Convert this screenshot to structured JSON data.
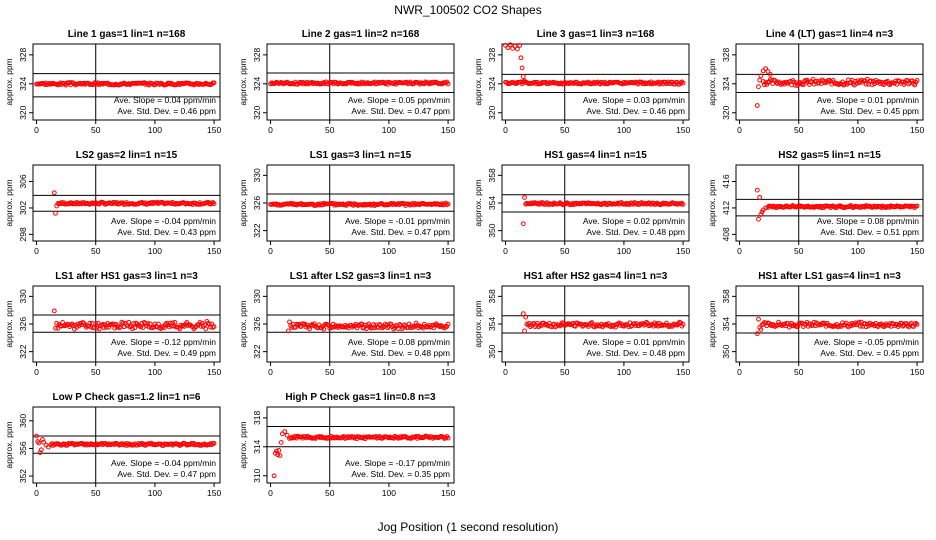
{
  "figure_title": "NWR_100502  CO2 Shapes",
  "x_axis_label": "Jog Position (1 second resolution)",
  "colors": {
    "points": "#ff0000",
    "axes": "#000000"
  },
  "chart_data": [
    {
      "type": "scatter",
      "title": "Line 1 gas=1 lin=1 n=168",
      "ylabel": "approx. ppm",
      "xlim": [
        -3,
        155
      ],
      "ylim": [
        319,
        329.5
      ],
      "xticks": [
        0,
        50,
        100,
        150
      ],
      "yticks": [
        320,
        324,
        328
      ],
      "hlines": [
        322.2,
        325.4
      ],
      "vline": 50,
      "slope_text": "Ave. Slope =  0.04  ppm/min",
      "std_text": "Ave. Std. Dev. =  0.46  ppm",
      "pattern": "flat",
      "x_start": 0,
      "x_end": 150,
      "base": 324.0,
      "noise": 0.15
    },
    {
      "type": "scatter",
      "title": "Line 2 gas=1 lin=2 n=168",
      "ylabel": "approx. ppm",
      "xlim": [
        -3,
        155
      ],
      "ylim": [
        319,
        329.5
      ],
      "xticks": [
        0,
        50,
        100,
        150
      ],
      "yticks": [
        320,
        324,
        328
      ],
      "hlines": [
        322.8,
        325.5
      ],
      "vline": 50,
      "slope_text": "Ave. Slope =  0.05  ppm/min",
      "std_text": "Ave. Std. Dev. =  0.47  ppm",
      "pattern": "flat",
      "x_start": 0,
      "x_end": 150,
      "base": 324.1,
      "noise": 0.15
    },
    {
      "type": "scatter",
      "title": "Line 3 gas=1 lin=3 n=168",
      "ylabel": "approx. ppm",
      "xlim": [
        -3,
        155
      ],
      "ylim": [
        319,
        329.5
      ],
      "xticks": [
        0,
        50,
        100,
        150
      ],
      "yticks": [
        320,
        324,
        328
      ],
      "hlines": [
        322.8,
        325.3
      ],
      "vline": 50,
      "slope_text": "Ave. Slope =  0.03  ppm/min",
      "std_text": "Ave. Std. Dev. =  0.46  ppm",
      "pattern": "drop",
      "x_start": 0,
      "x_end": 150,
      "base": 324.1,
      "noise": 0.15,
      "lead": [
        [
          0,
          329.3
        ],
        [
          2,
          329.0
        ],
        [
          4,
          329.4
        ],
        [
          6,
          328.9
        ],
        [
          8,
          329.2
        ],
        [
          10,
          328.8
        ],
        [
          12,
          329.3
        ],
        [
          13,
          327.6
        ],
        [
          14,
          326.2
        ],
        [
          15,
          325.0
        ],
        [
          16,
          324.4
        ]
      ]
    },
    {
      "type": "scatter",
      "title": "Line 4 (LT) gas=1 lin=4 n=3",
      "ylabel": "approx. ppm",
      "xlim": [
        -3,
        155
      ],
      "ylim": [
        319,
        329.5
      ],
      "xticks": [
        0,
        50,
        100,
        150
      ],
      "yticks": [
        320,
        324,
        328
      ],
      "hlines": [
        322.8,
        325.3
      ],
      "vline": 50,
      "slope_text": "Ave. Slope =  0.01  ppm/min",
      "std_text": "Ave. Std. Dev. =  0.45  ppm",
      "pattern": "bump",
      "x_start": 20,
      "x_end": 150,
      "base": 324.2,
      "noise": 0.35,
      "lead": [
        [
          15,
          321.0
        ],
        [
          16,
          323.6
        ],
        [
          17,
          324.5
        ],
        [
          18,
          325.1
        ],
        [
          20,
          325.8
        ],
        [
          22,
          326.1
        ],
        [
          24,
          325.7
        ],
        [
          26,
          325.3
        ]
      ]
    },
    {
      "type": "scatter",
      "title": "LS2 gas=2 lin=1 n=15",
      "ylabel": "approx. ppm",
      "xlim": [
        -3,
        155
      ],
      "ylim": [
        297,
        308.5
      ],
      "xticks": [
        0,
        50,
        100,
        150
      ],
      "yticks": [
        298,
        302,
        306
      ],
      "hlines": [
        301.5,
        303.9
      ],
      "vline": 50,
      "slope_text": "Ave. Slope =  -0.04  ppm/min",
      "std_text": "Ave. Std. Dev. =  0.43  ppm",
      "pattern": "spike",
      "x_start": 18,
      "x_end": 150,
      "base": 302.7,
      "noise": 0.15,
      "lead": [
        [
          15,
          304.3
        ],
        [
          16,
          301.2
        ],
        [
          17,
          302.3
        ]
      ]
    },
    {
      "type": "scatter",
      "title": "LS1 gas=3 lin=1 n=15",
      "ylabel": "approx. ppm",
      "xlim": [
        -3,
        155
      ],
      "ylim": [
        320.5,
        331.5
      ],
      "xticks": [
        0,
        50,
        100,
        150
      ],
      "yticks": [
        322,
        326,
        330
      ],
      "hlines": [
        324.8,
        327.3
      ],
      "vline": 50,
      "slope_text": "Ave. Slope =  -0.01  ppm/min",
      "std_text": "Ave. Std. Dev. =  0.47  ppm",
      "pattern": "flat",
      "x_start": 0,
      "x_end": 150,
      "base": 325.8,
      "noise": 0.15
    },
    {
      "type": "scatter",
      "title": "HS1 gas=4 lin=1 n=15",
      "ylabel": "approx. ppm",
      "xlim": [
        -3,
        155
      ],
      "ylim": [
        348.5,
        359.5
      ],
      "xticks": [
        0,
        50,
        100,
        150
      ],
      "yticks": [
        350,
        354,
        358
      ],
      "hlines": [
        352.7,
        355.2
      ],
      "vline": 50,
      "slope_text": "Ave. Slope =  0.02  ppm/min",
      "std_text": "Ave. Std. Dev. =  0.48  ppm",
      "pattern": "spike",
      "x_start": 17,
      "x_end": 150,
      "base": 353.9,
      "noise": 0.15,
      "lead": [
        [
          15,
          351.0
        ],
        [
          16,
          354.8
        ]
      ]
    },
    {
      "type": "scatter",
      "title": "HS2 gas=5 lin=1 n=15",
      "ylabel": "approx. ppm",
      "xlim": [
        -3,
        155
      ],
      "ylim": [
        407,
        418.5
      ],
      "xticks": [
        0,
        50,
        100,
        150
      ],
      "yticks": [
        408,
        412,
        416
      ],
      "hlines": [
        410.8,
        413.3
      ],
      "vline": 50,
      "slope_text": "Ave. Slope =  0.08  ppm/min",
      "std_text": "Ave. Std. Dev. =  0.51  ppm",
      "pattern": "recover",
      "x_start": 24,
      "x_end": 150,
      "base": 412.2,
      "noise": 0.15,
      "lead": [
        [
          15,
          414.7
        ],
        [
          16,
          410.3
        ],
        [
          17,
          413.6
        ],
        [
          18,
          411.0
        ],
        [
          19,
          411.4
        ],
        [
          20,
          411.7
        ],
        [
          22,
          412.0
        ]
      ]
    },
    {
      "type": "scatter",
      "title": "LS1 after HS1 gas=3 lin=1 n=3",
      "ylabel": "approx. ppm",
      "xlim": [
        -3,
        155
      ],
      "ylim": [
        320.5,
        331.5
      ],
      "xticks": [
        0,
        50,
        100,
        150
      ],
      "yticks": [
        322,
        326,
        330
      ],
      "hlines": [
        324.8,
        327.3
      ],
      "vline": 50,
      "slope_text": "Ave. Slope =  -0.12  ppm/min",
      "std_text": "Ave. Std. Dev. =  0.49  ppm",
      "pattern": "noisy",
      "x_start": 17,
      "x_end": 150,
      "base": 325.8,
      "noise": 0.45,
      "lead": [
        [
          15,
          327.9
        ],
        [
          16,
          325.4
        ]
      ]
    },
    {
      "type": "scatter",
      "title": "LS1 after LS2 gas=3 lin=1 n=3",
      "ylabel": "approx. ppm",
      "xlim": [
        -3,
        155
      ],
      "ylim": [
        320.5,
        331.5
      ],
      "xticks": [
        0,
        50,
        100,
        150
      ],
      "yticks": [
        322,
        326,
        330
      ],
      "hlines": [
        324.8,
        327.3
      ],
      "vline": 50,
      "slope_text": "Ave. Slope =  0.08  ppm/min",
      "std_text": "Ave. Std. Dev. =  0.48  ppm",
      "pattern": "noisy",
      "x_start": 17,
      "x_end": 150,
      "base": 325.7,
      "noise": 0.35,
      "lead": [
        [
          15,
          325.0
        ],
        [
          16,
          326.3
        ]
      ]
    },
    {
      "type": "scatter",
      "title": "HS1 after HS2 gas=4 lin=1 n=3",
      "ylabel": "approx. ppm",
      "xlim": [
        -3,
        155
      ],
      "ylim": [
        348.5,
        359.5
      ],
      "xticks": [
        0,
        50,
        100,
        150
      ],
      "yticks": [
        350,
        354,
        358
      ],
      "hlines": [
        352.7,
        355.2
      ],
      "vline": 50,
      "slope_text": "Ave. Slope =  0.01  ppm/min",
      "std_text": "Ave. Std. Dev. =  0.48  ppm",
      "pattern": "noisy",
      "x_start": 18,
      "x_end": 150,
      "base": 353.9,
      "noise": 0.3,
      "lead": [
        [
          15,
          355.5
        ],
        [
          16,
          353.0
        ],
        [
          17,
          355.0
        ]
      ]
    },
    {
      "type": "scatter",
      "title": "HS1 after LS1 gas=4 lin=1 n=3",
      "ylabel": "approx. ppm",
      "xlim": [
        -3,
        155
      ],
      "ylim": [
        348.5,
        359.5
      ],
      "xticks": [
        0,
        50,
        100,
        150
      ],
      "yticks": [
        350,
        354,
        358
      ],
      "hlines": [
        352.7,
        355.2
      ],
      "vline": 50,
      "slope_text": "Ave. Slope =  -0.05  ppm/min",
      "std_text": "Ave. Std. Dev. =  0.45  ppm",
      "pattern": "noisy",
      "x_start": 19,
      "x_end": 150,
      "base": 353.9,
      "noise": 0.3,
      "lead": [
        [
          15,
          352.6
        ],
        [
          16,
          354.7
        ],
        [
          17,
          353.5
        ],
        [
          18,
          353.2
        ]
      ]
    },
    {
      "type": "scatter",
      "title": "Low P Check gas=1.2 lin=1 n=6",
      "ylabel": "approx. ppm",
      "xlim": [
        -3,
        155
      ],
      "ylim": [
        351,
        362
      ],
      "xticks": [
        0,
        50,
        100,
        150
      ],
      "yticks": [
        352,
        356,
        360
      ],
      "hlines": [
        355.3,
        357.8
      ],
      "vline": 50,
      "slope_text": "Ave. Slope =  -0.04  ppm/min",
      "std_text": "Ave. Std. Dev. =  0.47  ppm",
      "pattern": "decay",
      "x_start": 12,
      "x_end": 150,
      "base": 356.6,
      "noise": 0.15,
      "lead": [
        [
          0,
          357.8
        ],
        [
          1,
          357.0
        ],
        [
          2,
          356.8
        ],
        [
          3,
          355.4
        ],
        [
          4,
          355.8
        ],
        [
          5,
          357.3
        ],
        [
          6,
          356.9
        ],
        [
          8,
          356.5
        ],
        [
          10,
          356.2
        ]
      ]
    },
    {
      "type": "scatter",
      "title": "High P Check gas=1 lin=0.8 n=3",
      "ylabel": "approx. ppm",
      "xlim": [
        -3,
        155
      ],
      "ylim": [
        309,
        319.5
      ],
      "xticks": [
        0,
        50,
        100,
        150
      ],
      "yticks": [
        310,
        314,
        318
      ],
      "hlines": [
        314.0,
        316.8
      ],
      "vline": 50,
      "slope_text": "Ave. Slope =  -0.17  ppm/min",
      "std_text": "Ave. Std. Dev. =  0.35  ppm",
      "pattern": "rise",
      "x_start": 16,
      "x_end": 150,
      "base": 315.3,
      "noise": 0.15,
      "lead": [
        [
          3,
          310.0
        ],
        [
          4,
          313.1
        ],
        [
          5,
          313.4
        ],
        [
          6,
          312.9
        ],
        [
          7,
          313.5
        ],
        [
          8,
          312.8
        ],
        [
          9,
          314.6
        ],
        [
          10,
          315.8
        ],
        [
          12,
          316.1
        ],
        [
          14,
          315.6
        ]
      ]
    }
  ]
}
